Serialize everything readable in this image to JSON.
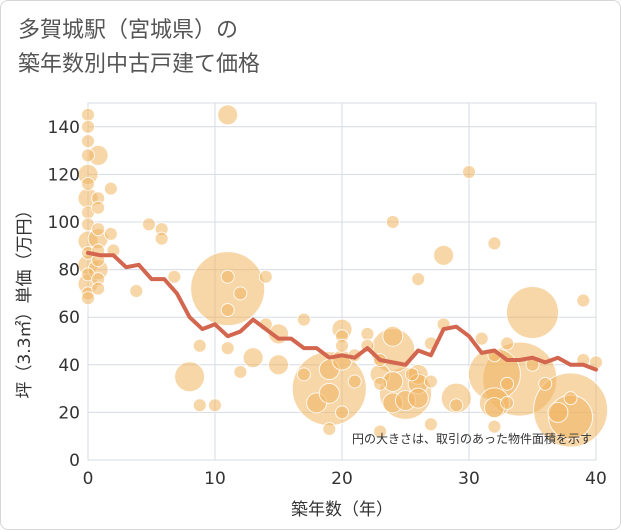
{
  "chart_data": {
    "type": "scatter",
    "title_line1": "多賀城駅（宮城県）の",
    "title_line2": "築年数別中古戸建て価格",
    "xlabel": "築年数（年）",
    "ylabel": "坪（3.3㎡）単価（万円）",
    "xlim": [
      0,
      40
    ],
    "ylim": [
      0,
      150
    ],
    "x_ticks": [
      0,
      10,
      20,
      30,
      40
    ],
    "y_ticks": [
      0,
      20,
      40,
      60,
      80,
      100,
      120,
      140
    ],
    "note": "円の大きさは、取引のあった物件面積を示す",
    "colors": {
      "bubble": "#f0b561",
      "line": "#d2664f",
      "grid": "#d5dbe3"
    },
    "trend": {
      "x": [
        0,
        1,
        2,
        3,
        4,
        5,
        6,
        7,
        8,
        9,
        10,
        11,
        12,
        13,
        14,
        15,
        16,
        17,
        18,
        19,
        20,
        21,
        22,
        23,
        24,
        25,
        26,
        27,
        28,
        29,
        30,
        31,
        32,
        33,
        34,
        35,
        36,
        37,
        38,
        39,
        40
      ],
      "y": [
        87,
        86,
        86,
        81,
        82,
        76,
        76,
        70,
        60,
        55,
        57,
        52,
        54,
        59,
        55,
        51,
        51,
        47,
        47,
        43,
        44,
        43,
        47,
        42,
        41,
        40,
        46,
        44,
        55,
        56,
        52,
        45,
        46,
        42,
        42,
        43,
        41,
        43,
        40,
        40,
        38
      ]
    },
    "points": [
      {
        "x": 0,
        "y": 145,
        "s": 1
      },
      {
        "x": 0,
        "y": 140,
        "s": 1
      },
      {
        "x": 0,
        "y": 134,
        "s": 1
      },
      {
        "x": 0,
        "y": 128,
        "s": 1
      },
      {
        "x": 0,
        "y": 120,
        "s": 2
      },
      {
        "x": 0,
        "y": 116,
        "s": 1
      },
      {
        "x": 0,
        "y": 110,
        "s": 2
      },
      {
        "x": 0,
        "y": 104,
        "s": 1
      },
      {
        "x": 0,
        "y": 99,
        "s": 1
      },
      {
        "x": 0,
        "y": 92,
        "s": 2
      },
      {
        "x": 0,
        "y": 87,
        "s": 1
      },
      {
        "x": 0,
        "y": 82,
        "s": 2
      },
      {
        "x": 0,
        "y": 78,
        "s": 1
      },
      {
        "x": 0,
        "y": 74,
        "s": 2
      },
      {
        "x": 0,
        "y": 70,
        "s": 1
      },
      {
        "x": 0,
        "y": 68,
        "s": 1
      },
      {
        "x": 0.8,
        "y": 128,
        "s": 2
      },
      {
        "x": 0.8,
        "y": 110,
        "s": 1
      },
      {
        "x": 0.8,
        "y": 106,
        "s": 1
      },
      {
        "x": 0.8,
        "y": 97,
        "s": 1
      },
      {
        "x": 0.8,
        "y": 93,
        "s": 2
      },
      {
        "x": 0.8,
        "y": 88,
        "s": 1
      },
      {
        "x": 0.8,
        "y": 84,
        "s": 1
      },
      {
        "x": 0.8,
        "y": 80,
        "s": 2
      },
      {
        "x": 0.8,
        "y": 76,
        "s": 1
      },
      {
        "x": 0.8,
        "y": 72,
        "s": 1
      },
      {
        "x": 1.8,
        "y": 114,
        "s": 1
      },
      {
        "x": 1.8,
        "y": 95,
        "s": 1
      },
      {
        "x": 2,
        "y": 88,
        "s": 1
      },
      {
        "x": 3.8,
        "y": 71,
        "s": 1
      },
      {
        "x": 4.8,
        "y": 99,
        "s": 1
      },
      {
        "x": 5.8,
        "y": 97,
        "s": 1
      },
      {
        "x": 5.8,
        "y": 93,
        "s": 1
      },
      {
        "x": 6.8,
        "y": 77,
        "s": 1
      },
      {
        "x": 8,
        "y": 35,
        "s": 3
      },
      {
        "x": 8.8,
        "y": 48,
        "s": 1
      },
      {
        "x": 8.8,
        "y": 23,
        "s": 1
      },
      {
        "x": 10,
        "y": 23,
        "s": 1
      },
      {
        "x": 11,
        "y": 145,
        "s": 2
      },
      {
        "x": 11,
        "y": 72,
        "s": 6
      },
      {
        "x": 11,
        "y": 77,
        "s": 1
      },
      {
        "x": 11,
        "y": 63,
        "s": 1
      },
      {
        "x": 11,
        "y": 47,
        "s": 1
      },
      {
        "x": 12,
        "y": 70,
        "s": 1
      },
      {
        "x": 12,
        "y": 37,
        "s": 1
      },
      {
        "x": 13,
        "y": 43,
        "s": 2
      },
      {
        "x": 14,
        "y": 77,
        "s": 1
      },
      {
        "x": 14,
        "y": 57,
        "s": 1
      },
      {
        "x": 15,
        "y": 53,
        "s": 2
      },
      {
        "x": 15,
        "y": 40,
        "s": 2
      },
      {
        "x": 17,
        "y": 59,
        "s": 1
      },
      {
        "x": 17,
        "y": 36,
        "s": 1
      },
      {
        "x": 18,
        "y": 24,
        "s": 2
      },
      {
        "x": 19,
        "y": 30,
        "s": 6
      },
      {
        "x": 19,
        "y": 38,
        "s": 2
      },
      {
        "x": 19,
        "y": 28,
        "s": 2
      },
      {
        "x": 19,
        "y": 13,
        "s": 1
      },
      {
        "x": 20,
        "y": 55,
        "s": 2
      },
      {
        "x": 20,
        "y": 52,
        "s": 1
      },
      {
        "x": 20,
        "y": 48,
        "s": 1
      },
      {
        "x": 20,
        "y": 42,
        "s": 2
      },
      {
        "x": 20,
        "y": 20,
        "s": 1
      },
      {
        "x": 21,
        "y": 44,
        "s": 1
      },
      {
        "x": 21,
        "y": 33,
        "s": 1
      },
      {
        "x": 22,
        "y": 53,
        "s": 1
      },
      {
        "x": 22,
        "y": 48,
        "s": 1
      },
      {
        "x": 23,
        "y": 42,
        "s": 1
      },
      {
        "x": 23,
        "y": 36,
        "s": 2
      },
      {
        "x": 23,
        "y": 32,
        "s": 1
      },
      {
        "x": 23,
        "y": 12,
        "s": 1
      },
      {
        "x": 24,
        "y": 100,
        "s": 1
      },
      {
        "x": 24,
        "y": 52,
        "s": 2
      },
      {
        "x": 24,
        "y": 46,
        "s": 4
      },
      {
        "x": 24,
        "y": 33,
        "s": 2
      },
      {
        "x": 24,
        "y": 24,
        "s": 2
      },
      {
        "x": 25,
        "y": 28,
        "s": 5
      },
      {
        "x": 25,
        "y": 25,
        "s": 2
      },
      {
        "x": 25.5,
        "y": 36,
        "s": 1
      },
      {
        "x": 26,
        "y": 76,
        "s": 1
      },
      {
        "x": 26,
        "y": 36,
        "s": 2
      },
      {
        "x": 26,
        "y": 32,
        "s": 2
      },
      {
        "x": 26,
        "y": 26,
        "s": 2
      },
      {
        "x": 27,
        "y": 49,
        "s": 1
      },
      {
        "x": 27,
        "y": 33,
        "s": 1
      },
      {
        "x": 27,
        "y": 15,
        "s": 1
      },
      {
        "x": 28,
        "y": 86,
        "s": 2
      },
      {
        "x": 28,
        "y": 57,
        "s": 1
      },
      {
        "x": 29,
        "y": 26,
        "s": 3
      },
      {
        "x": 29,
        "y": 23,
        "s": 1
      },
      {
        "x": 30,
        "y": 121,
        "s": 1
      },
      {
        "x": 31,
        "y": 51,
        "s": 1
      },
      {
        "x": 32,
        "y": 91,
        "s": 1
      },
      {
        "x": 32,
        "y": 44,
        "s": 1
      },
      {
        "x": 32,
        "y": 36,
        "s": 5
      },
      {
        "x": 32,
        "y": 24,
        "s": 3
      },
      {
        "x": 32,
        "y": 22,
        "s": 2
      },
      {
        "x": 32,
        "y": 14,
        "s": 1
      },
      {
        "x": 33,
        "y": 49,
        "s": 1
      },
      {
        "x": 33,
        "y": 32,
        "s": 1
      },
      {
        "x": 33,
        "y": 24,
        "s": 1
      },
      {
        "x": 34,
        "y": 34,
        "s": 6
      },
      {
        "x": 35,
        "y": 62,
        "s": 5
      },
      {
        "x": 35,
        "y": 40,
        "s": 1
      },
      {
        "x": 36,
        "y": 32,
        "s": 1
      },
      {
        "x": 37,
        "y": 20,
        "s": 2
      },
      {
        "x": 38,
        "y": 21,
        "s": 6
      },
      {
        "x": 38,
        "y": 18,
        "s": 4
      },
      {
        "x": 38,
        "y": 26,
        "s": 1
      },
      {
        "x": 39,
        "y": 67,
        "s": 1
      },
      {
        "x": 39,
        "y": 42,
        "s": 1
      },
      {
        "x": 40,
        "y": 41,
        "s": 1
      }
    ]
  }
}
